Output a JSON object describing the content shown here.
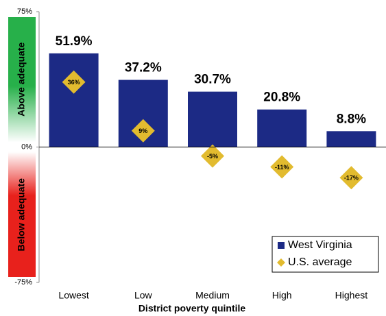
{
  "chart_data": {
    "type": "bar",
    "x_label": "District poverty quintile",
    "categories": [
      "Lowest",
      "Low",
      "Medium",
      "High",
      "Highest"
    ],
    "series": [
      {
        "name": "West Virginia",
        "type": "bar",
        "color": "#1c2a85",
        "values": [
          51.9,
          37.2,
          30.7,
          20.8,
          8.8
        ],
        "value_labels": [
          "51.9%",
          "37.2%",
          "30.7%",
          "20.8%",
          "8.8%"
        ]
      },
      {
        "name": "U.S. average",
        "type": "scatter",
        "marker": "diamond",
        "color": "#e2bb2f",
        "values": [
          36,
          9,
          -5,
          -11,
          -17
        ],
        "value_labels": [
          "36%",
          "9%",
          "-5%",
          "-11%",
          "-17%"
        ]
      }
    ],
    "ylim": [
      -75,
      75
    ],
    "yticks": [
      {
        "value": -75,
        "label": "-75%"
      },
      {
        "value": 0,
        "label": "0%"
      },
      {
        "value": 75,
        "label": "75%"
      }
    ],
    "zones": [
      {
        "label": "Above adequate",
        "color": "#27b04a"
      },
      {
        "label": "Below adequate",
        "color": "#e8211c"
      }
    ],
    "legend": "lower right"
  }
}
